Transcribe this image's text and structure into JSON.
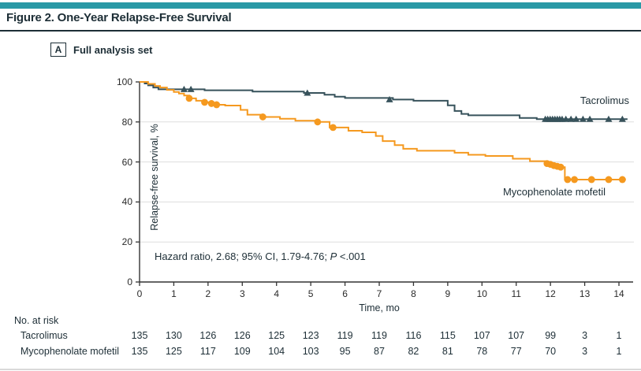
{
  "figure": {
    "title": "Figure 2. One-Year Relapse-Free Survival"
  },
  "panel": {
    "letter": "A",
    "label": "Full analysis set"
  },
  "colors": {
    "accent_bar": "#2a99a6",
    "title_rule": "#1d2e36",
    "tacrolimus": "#37525b",
    "mycophenolate": "#f5991f",
    "gridline": "#dddddd",
    "axis": "#333333",
    "text_dark": "#1d2e36"
  },
  "annotation": {
    "hazard_prefix": "Hazard ratio, 2.68; 95% CI, 1.79-4.76; ",
    "p_label": "P",
    "p_value": " <.001"
  },
  "chart_data": {
    "type": "line",
    "subtype": "kaplan-meier-step",
    "title": "",
    "xlabel": "Time, mo",
    "ylabel": "Relapse-free survival, %",
    "xlim": [
      0,
      14
    ],
    "ylim": [
      0,
      100
    ],
    "x_ticks": [
      0,
      1,
      2,
      3,
      4,
      5,
      6,
      7,
      8,
      9,
      10,
      11,
      12,
      13,
      14
    ],
    "y_ticks": [
      0,
      20,
      40,
      60,
      80,
      100
    ],
    "grid": "horizontal gridlines at 20,40,60,80",
    "legend_position": "labels beside curves",
    "series": [
      {
        "name": "Tacrolimus",
        "marker": "triangle",
        "steps": [
          [
            0,
            100
          ],
          [
            0.15,
            99.2
          ],
          [
            0.25,
            98.3
          ],
          [
            0.4,
            97.2
          ],
          [
            0.55,
            96.3
          ],
          [
            1.9,
            95.8
          ],
          [
            3.3,
            95.2
          ],
          [
            4.8,
            94.5
          ],
          [
            5.4,
            93.6
          ],
          [
            5.7,
            92.6
          ],
          [
            6.0,
            92.0
          ],
          [
            7.4,
            91.2
          ],
          [
            8.0,
            90.6
          ],
          [
            9.0,
            88.3
          ],
          [
            9.2,
            85.5
          ],
          [
            9.4,
            84.0
          ],
          [
            9.6,
            83.3
          ],
          [
            11.1,
            82.0
          ],
          [
            11.6,
            81.4
          ],
          [
            14.25,
            81.4
          ]
        ],
        "censor_marks": [
          [
            1.3,
            96.3
          ],
          [
            1.5,
            96.3
          ],
          [
            4.9,
            94.5
          ],
          [
            7.3,
            91.2
          ],
          [
            11.85,
            81.4
          ],
          [
            11.92,
            81.4
          ],
          [
            11.99,
            81.4
          ],
          [
            12.06,
            81.4
          ],
          [
            12.13,
            81.4
          ],
          [
            12.2,
            81.4
          ],
          [
            12.27,
            81.4
          ],
          [
            12.34,
            81.4
          ],
          [
            12.45,
            81.4
          ],
          [
            12.6,
            81.4
          ],
          [
            12.75,
            81.4
          ],
          [
            12.95,
            81.4
          ],
          [
            13.15,
            81.4
          ],
          [
            13.7,
            81.4
          ],
          [
            14.1,
            81.4
          ]
        ]
      },
      {
        "name": "Mycophenolate mofetil",
        "marker": "circle",
        "steps": [
          [
            0,
            100
          ],
          [
            0.25,
            99
          ],
          [
            0.45,
            98
          ],
          [
            0.6,
            97.2
          ],
          [
            0.8,
            96
          ],
          [
            1.0,
            95
          ],
          [
            1.15,
            94.2
          ],
          [
            1.3,
            93.2
          ],
          [
            1.45,
            91.8
          ],
          [
            1.65,
            90.6
          ],
          [
            1.85,
            89.8
          ],
          [
            2.05,
            89.2
          ],
          [
            2.2,
            88.6
          ],
          [
            2.5,
            88.2
          ],
          [
            2.95,
            86.0
          ],
          [
            3.15,
            83.6
          ],
          [
            3.6,
            82.5
          ],
          [
            4.1,
            81.6
          ],
          [
            4.55,
            80.6
          ],
          [
            5.15,
            80.0
          ],
          [
            5.55,
            77.2
          ],
          [
            6.1,
            75.6
          ],
          [
            6.5,
            74.8
          ],
          [
            6.9,
            73.0
          ],
          [
            7.1,
            70.4
          ],
          [
            7.45,
            68.4
          ],
          [
            7.7,
            66.6
          ],
          [
            8.1,
            65.6
          ],
          [
            9.2,
            64.6
          ],
          [
            9.6,
            63.6
          ],
          [
            10.1,
            63.0
          ],
          [
            10.9,
            61.6
          ],
          [
            11.4,
            60.4
          ],
          [
            11.9,
            59.2
          ],
          [
            12.1,
            58.2
          ],
          [
            12.3,
            57.4
          ],
          [
            12.42,
            51.2
          ],
          [
            14.2,
            51.2
          ]
        ],
        "censor_marks": [
          [
            1.45,
            91.8
          ],
          [
            1.9,
            89.8
          ],
          [
            2.1,
            89.2
          ],
          [
            2.25,
            88.6
          ],
          [
            3.6,
            82.5
          ],
          [
            5.2,
            80.0
          ],
          [
            5.65,
            77.2
          ],
          [
            11.9,
            59.2
          ],
          [
            12.0,
            58.8
          ],
          [
            12.1,
            58.2
          ],
          [
            12.2,
            57.8
          ],
          [
            12.3,
            57.4
          ],
          [
            12.5,
            51.2
          ],
          [
            12.7,
            51.2
          ],
          [
            13.2,
            51.2
          ],
          [
            13.7,
            51.2
          ],
          [
            14.1,
            51.2
          ]
        ]
      }
    ]
  },
  "risk_table": {
    "header": "No. at risk",
    "time_points": [
      0,
      1,
      2,
      3,
      4,
      5,
      6,
      7,
      8,
      9,
      10,
      11,
      12,
      13,
      14
    ],
    "rows": [
      {
        "label": "Tacrolimus",
        "values": [
          135,
          130,
          126,
          126,
          125,
          123,
          119,
          119,
          116,
          115,
          107,
          107,
          99,
          3,
          1
        ]
      },
      {
        "label": "Mycophenolate mofetil",
        "values": [
          135,
          125,
          117,
          109,
          104,
          103,
          95,
          87,
          82,
          81,
          78,
          77,
          70,
          3,
          1
        ]
      }
    ]
  }
}
